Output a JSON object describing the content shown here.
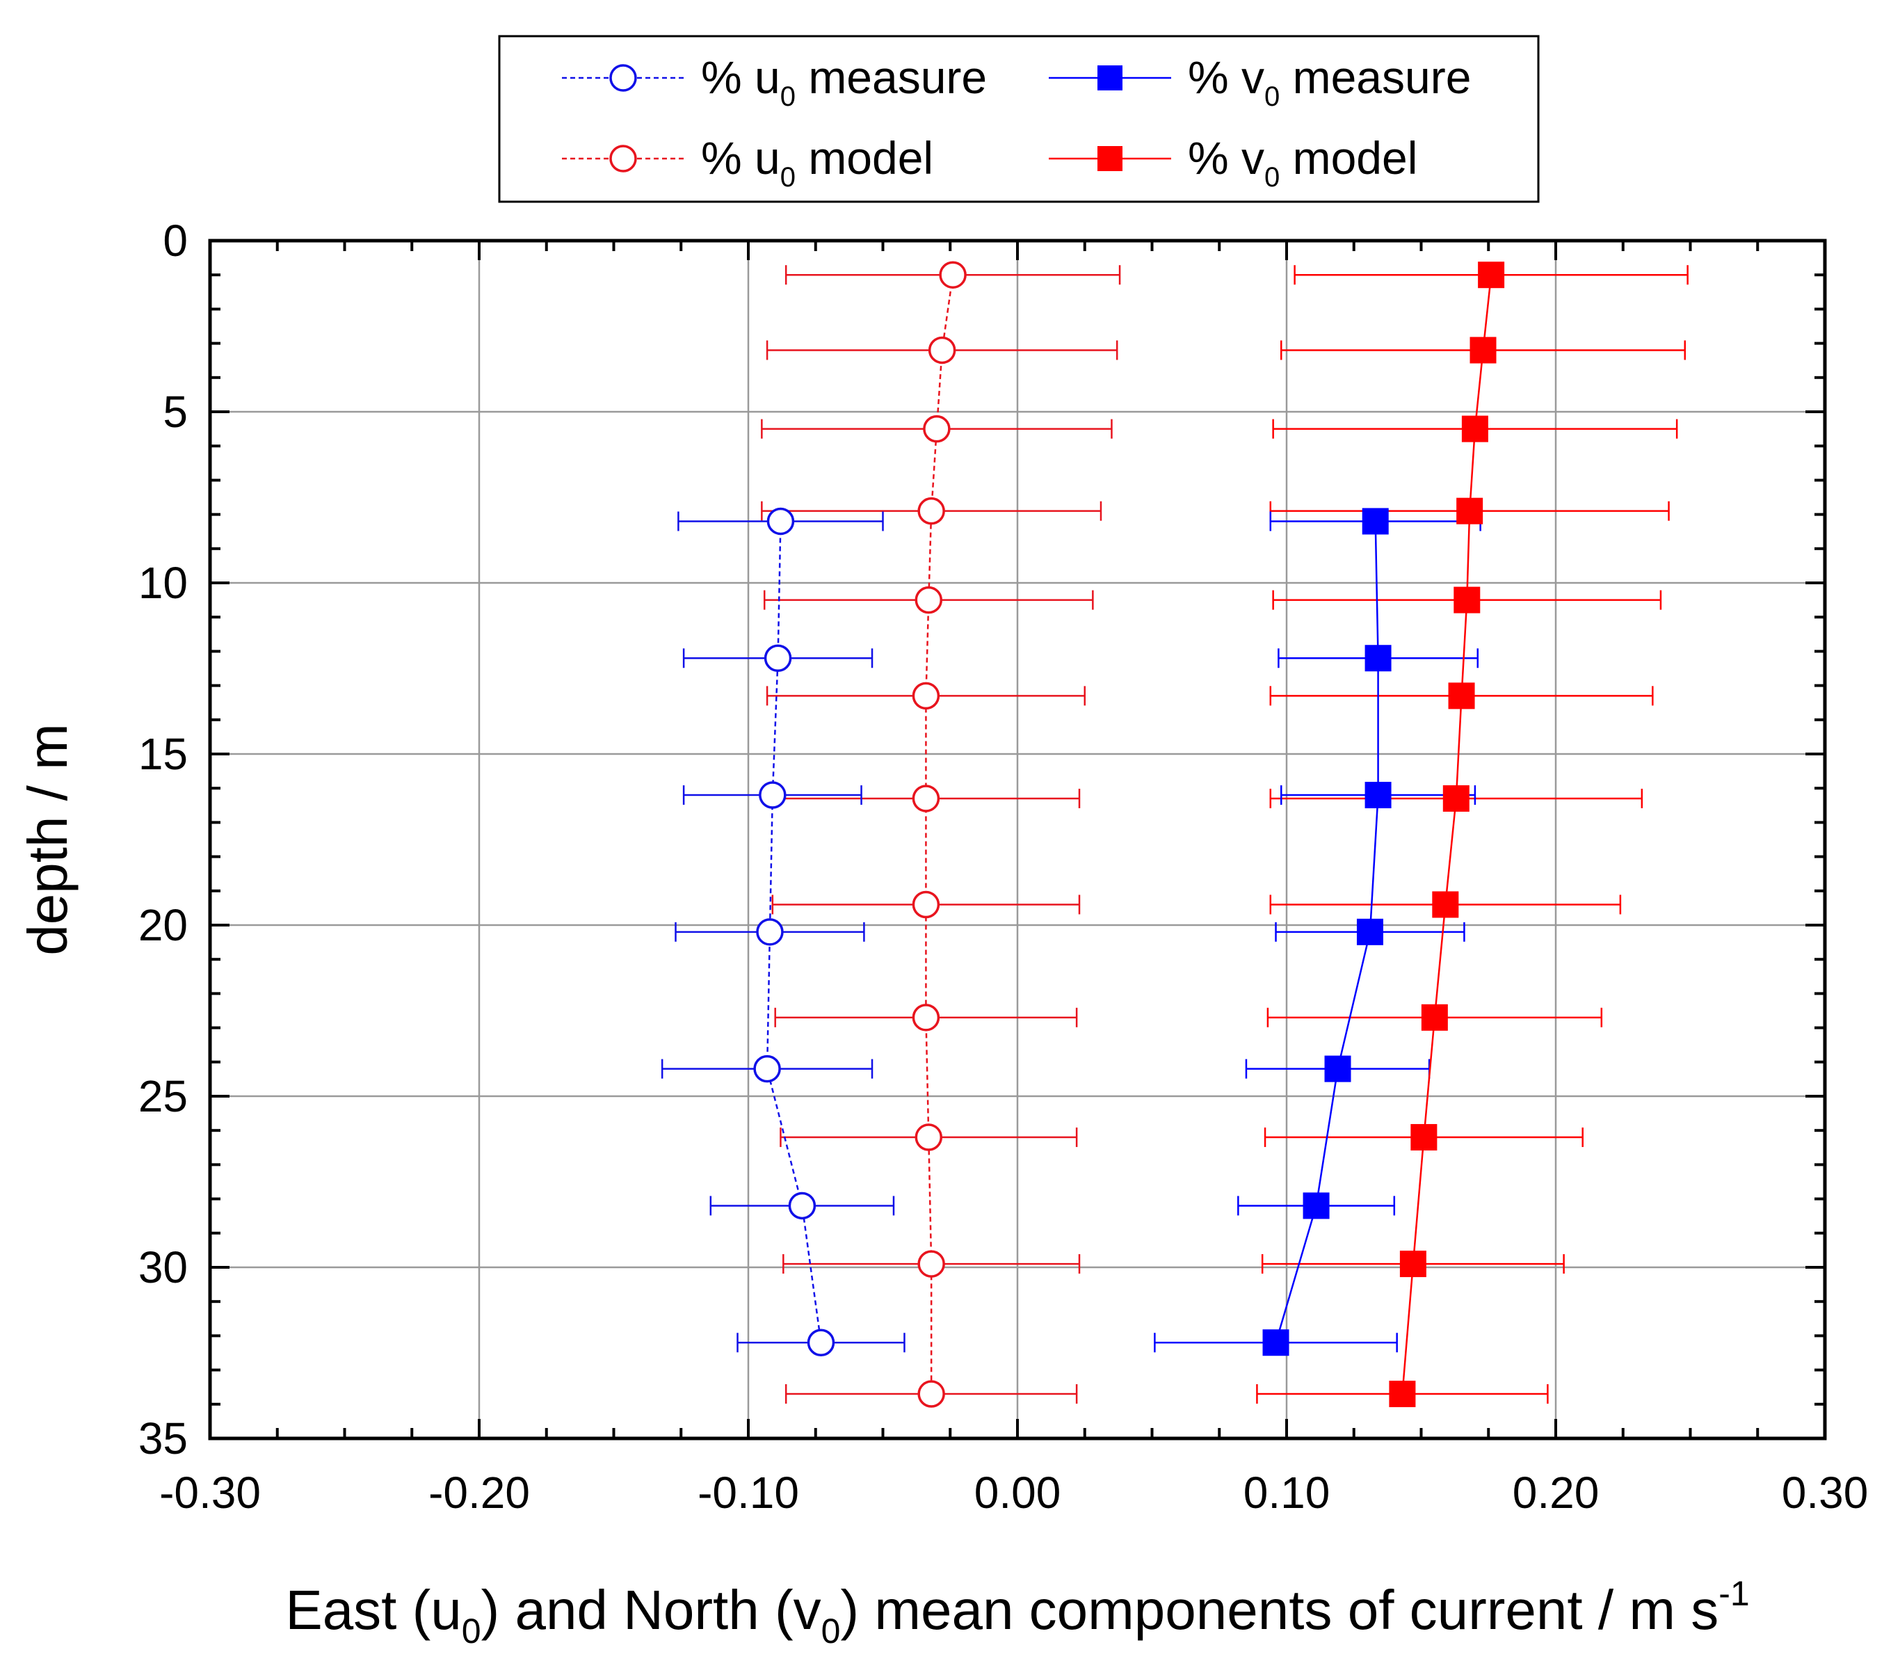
{
  "chart_data": {
    "type": "scatter",
    "title": "",
    "xlabel": "East (u₀) and North (v₀) mean components of current / m s⁻¹",
    "xlabel_parts": [
      "East (u",
      "0",
      ") and North (v",
      "0",
      ") mean components of current / m s",
      "-1"
    ],
    "ylabel": "depth / m",
    "xlim": [
      -0.3,
      0.3
    ],
    "ylim": [
      35,
      0
    ],
    "y_inverted": true,
    "x_ticks": [
      -0.3,
      -0.2,
      -0.1,
      0.0,
      0.1,
      0.2,
      0.3
    ],
    "x_tick_labels": [
      "-0.30",
      "-0.20",
      "-0.10",
      "0.00",
      "0.10",
      "0.20",
      "0.30"
    ],
    "y_ticks": [
      0,
      5,
      10,
      15,
      20,
      25,
      30,
      35
    ],
    "y_tick_labels": [
      "0",
      "5",
      "10",
      "15",
      "20",
      "25",
      "30",
      "35"
    ],
    "grid": true,
    "legend_position": "top",
    "series": [
      {
        "name": "% u0 measure",
        "legend_prefix": "% u",
        "legend_sub": "0",
        "legend_suffix": " measure",
        "color": "#1010e8",
        "marker": "open-circle",
        "line": "dashed",
        "points": [
          {
            "x": -0.088,
            "depth": 8.2,
            "err": 0.038
          },
          {
            "x": -0.089,
            "depth": 12.2,
            "err": 0.035
          },
          {
            "x": -0.091,
            "depth": 16.2,
            "err": 0.033
          },
          {
            "x": -0.092,
            "depth": 20.2,
            "err": 0.035
          },
          {
            "x": -0.093,
            "depth": 24.2,
            "err": 0.039
          },
          {
            "x": -0.08,
            "depth": 28.2,
            "err": 0.034
          },
          {
            "x": -0.073,
            "depth": 32.2,
            "err": 0.031
          }
        ]
      },
      {
        "name": "% v0 measure",
        "legend_prefix": "% v",
        "legend_sub": "0",
        "legend_suffix": " measure",
        "color": "#0000ff",
        "marker": "filled-square",
        "line": "solid",
        "points": [
          {
            "x": 0.133,
            "depth": 8.2,
            "err": 0.039
          },
          {
            "x": 0.134,
            "depth": 12.2,
            "err": 0.037
          },
          {
            "x": 0.134,
            "depth": 16.2,
            "err": 0.036
          },
          {
            "x": 0.131,
            "depth": 20.2,
            "err": 0.035
          },
          {
            "x": 0.119,
            "depth": 24.2,
            "err": 0.034
          },
          {
            "x": 0.111,
            "depth": 28.2,
            "err": 0.029
          },
          {
            "x": 0.096,
            "depth": 32.2,
            "err": 0.045
          }
        ]
      },
      {
        "name": "% u0 model",
        "legend_prefix": "% u",
        "legend_sub": "0",
        "legend_suffix": " model",
        "color": "#e8141e",
        "marker": "open-circle",
        "line": "dashed",
        "points": [
          {
            "x": -0.024,
            "depth": 1.0,
            "err": 0.062
          },
          {
            "x": -0.028,
            "depth": 3.2,
            "err": 0.065
          },
          {
            "x": -0.03,
            "depth": 5.5,
            "err": 0.065
          },
          {
            "x": -0.032,
            "depth": 7.9,
            "err": 0.063
          },
          {
            "x": -0.033,
            "depth": 10.5,
            "err": 0.061
          },
          {
            "x": -0.034,
            "depth": 13.3,
            "err": 0.059
          },
          {
            "x": -0.034,
            "depth": 16.3,
            "err": 0.057
          },
          {
            "x": -0.034,
            "depth": 19.4,
            "err": 0.057
          },
          {
            "x": -0.034,
            "depth": 22.7,
            "err": 0.056
          },
          {
            "x": -0.033,
            "depth": 26.2,
            "err": 0.055
          },
          {
            "x": -0.032,
            "depth": 29.9,
            "err": 0.055
          },
          {
            "x": -0.032,
            "depth": 33.7,
            "err": 0.054
          }
        ]
      },
      {
        "name": "% v0 model",
        "legend_prefix": "% v",
        "legend_sub": "0",
        "legend_suffix": " model",
        "color": "#ff0000",
        "marker": "filled-square",
        "line": "solid",
        "points": [
          {
            "x": 0.176,
            "depth": 1.0,
            "err": 0.073
          },
          {
            "x": 0.173,
            "depth": 3.2,
            "err": 0.075
          },
          {
            "x": 0.17,
            "depth": 5.5,
            "err": 0.075
          },
          {
            "x": 0.168,
            "depth": 7.9,
            "err": 0.074
          },
          {
            "x": 0.167,
            "depth": 10.5,
            "err": 0.072
          },
          {
            "x": 0.165,
            "depth": 13.3,
            "err": 0.071
          },
          {
            "x": 0.163,
            "depth": 16.3,
            "err": 0.069
          },
          {
            "x": 0.159,
            "depth": 19.4,
            "err": 0.065
          },
          {
            "x": 0.155,
            "depth": 22.7,
            "err": 0.062
          },
          {
            "x": 0.151,
            "depth": 26.2,
            "err": 0.059
          },
          {
            "x": 0.147,
            "depth": 29.9,
            "err": 0.056
          },
          {
            "x": 0.143,
            "depth": 33.7,
            "err": 0.054
          }
        ]
      }
    ]
  }
}
